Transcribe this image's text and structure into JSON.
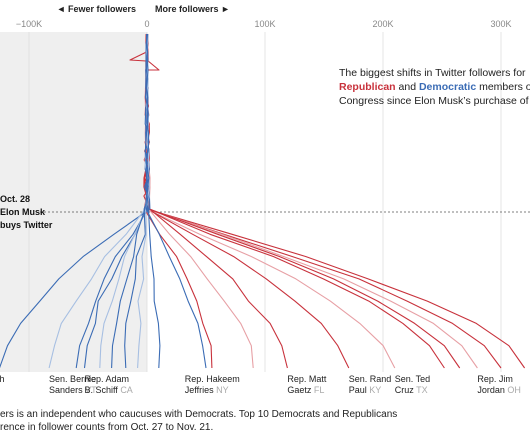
{
  "chart_data": {
    "type": "line",
    "axis": {
      "ticks": [
        {
          "value": -100000,
          "label": "−100K"
        },
        {
          "value": 0,
          "label": "0"
        },
        {
          "value": 100000,
          "label": "100K"
        },
        {
          "value": 200000,
          "label": "200K"
        },
        {
          "value": 300000,
          "label": "300K"
        }
      ],
      "xlim": [
        -125000,
        325000
      ],
      "fewer_label": "◄ Fewer followers",
      "more_label": "More followers ►"
    },
    "event_label_lines": [
      "Oct. 28",
      "Elon Musk",
      "buys Twitter"
    ],
    "description": {
      "line1": "The biggest shifts in Twitter followers for",
      "republican_word": "Republican",
      "and_word": "and",
      "democratic_word": "Democratic",
      "line2_end": "members of",
      "line3": "Congress since Elon Musk’s purchase of Tw"
    },
    "footnote_lines": [
      "ers is an independent who caucuses with Democrats. Top 10 Democrats and Republicans",
      "rence in follower counts from Oct. 27 to Nov. 21."
    ],
    "colors": {
      "republican": "#c8323c",
      "democratic": "#3b6cb5",
      "shade": "#efefef"
    },
    "labels": [
      {
        "name_lines": [
          "h"
        ],
        "state": "",
        "x": -125000
      },
      {
        "name_lines": [
          "Sen. Bernie",
          "Sanders"
        ],
        "state": "VT",
        "x": -83000
      },
      {
        "name_lines": [
          "Rep. Adam",
          "B. Schiff"
        ],
        "state": "CA",
        "x": -53000
      },
      {
        "name_lines": [
          "Rep. Hakeem",
          "Jeffries"
        ],
        "state": "NY",
        "x": 32000
      },
      {
        "name_lines": [
          "Rep. Matt",
          "Gaetz"
        ],
        "state": "FL",
        "x": 119000
      },
      {
        "name_lines": [
          "Sen. Rand",
          "Paul"
        ],
        "state": "KY",
        "x": 171000
      },
      {
        "name_lines": [
          "Sen. Ted",
          "Cruz"
        ],
        "state": "TX",
        "x": 210000
      },
      {
        "name_lines": [
          "Rep. Jim",
          "Jordan"
        ],
        "state": "OH",
        "x": 280000
      }
    ],
    "series": [
      {
        "party": "R",
        "final": 320000
      },
      {
        "party": "R",
        "final": 300000
      },
      {
        "party": "R",
        "final": 280000
      },
      {
        "party": "R",
        "final": 265000
      },
      {
        "party": "R",
        "final": 252000
      },
      {
        "party": "R",
        "final": 210000
      },
      {
        "party": "R",
        "final": 171000
      },
      {
        "party": "R",
        "final": 119000
      },
      {
        "party": "R",
        "final": 90000
      },
      {
        "party": "R",
        "final": 55000
      },
      {
        "party": "D",
        "final": -125000
      },
      {
        "party": "D",
        "final": -83000
      },
      {
        "party": "D",
        "final": -60000
      },
      {
        "party": "D",
        "final": -53000
      },
      {
        "party": "D",
        "final": -40000
      },
      {
        "party": "D",
        "final": -30000
      },
      {
        "party": "D",
        "final": -18000
      },
      {
        "party": "D",
        "final": -8000
      },
      {
        "party": "D",
        "final": 10000
      },
      {
        "party": "D",
        "final": 50000
      }
    ]
  }
}
